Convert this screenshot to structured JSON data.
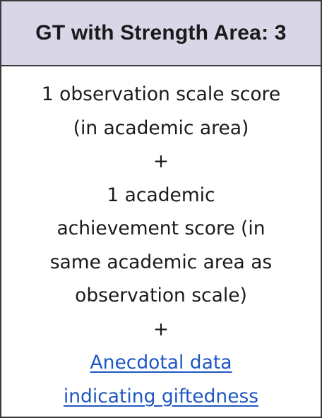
{
  "header": {
    "title": "GT with Strength Area: 3"
  },
  "body": {
    "line1": "1 observation scale score",
    "line2": "(in academic area)",
    "plus1": "+",
    "line3": "1 academic",
    "line4": "achievement score (in",
    "line5": "same academic area as",
    "line6": "observation scale)",
    "plus2": "+",
    "link_line1": "Anecdotal data",
    "link_line2": "indicating giftedness"
  },
  "colors": {
    "header_background": "#d9d6e8",
    "border": "#3a3a3a",
    "link": "#1f57c3",
    "text": "#1a1a1a"
  }
}
